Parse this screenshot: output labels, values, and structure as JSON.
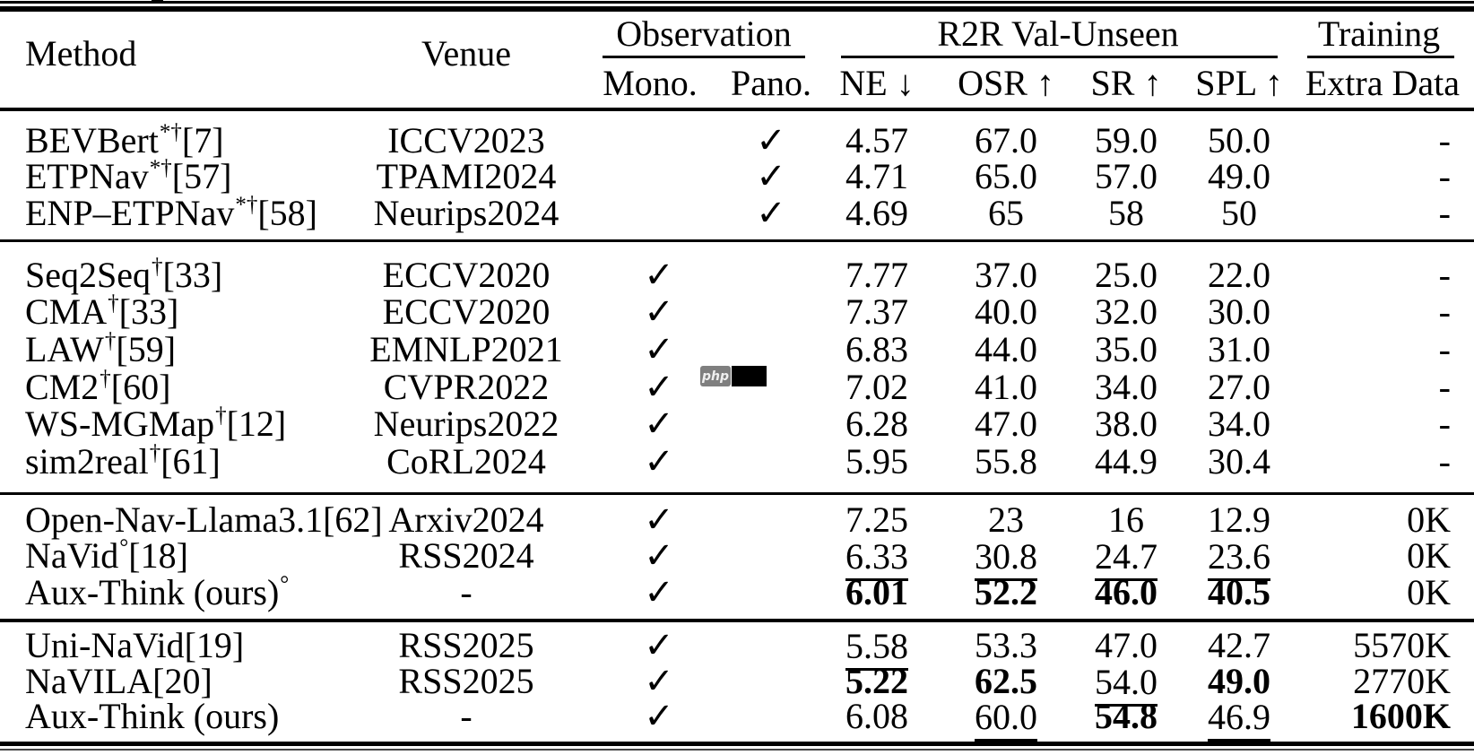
{
  "table": {
    "header": {
      "method": "Method",
      "venue": "Venue",
      "observation": "Observation",
      "r2r": "R2R Val-Unseen",
      "training": "Training",
      "mono": "Mono.",
      "pano": "Pano.",
      "ne": "NE ↓",
      "osr": "OSR ↑",
      "sr": "SR ↑",
      "spl": "SPL ↑",
      "extra": "Extra Data"
    },
    "groups": [
      {
        "rows": [
          {
            "method": {
              "base": "BEVBert",
              "sup": "*†",
              "ref": "[7]"
            },
            "venue": "ICCV2023",
            "mono": false,
            "pano": true,
            "ne": {
              "t": "4.57"
            },
            "osr": {
              "t": "67.0"
            },
            "sr": {
              "t": "59.0"
            },
            "spl": {
              "t": "50.0"
            },
            "extra": {
              "t": "-"
            }
          },
          {
            "method": {
              "base": "ETPNav",
              "sup": "*†",
              "ref": "[57]"
            },
            "venue": "TPAMI2024",
            "mono": false,
            "pano": true,
            "ne": {
              "t": "4.71"
            },
            "osr": {
              "t": "65.0"
            },
            "sr": {
              "t": "57.0"
            },
            "spl": {
              "t": "49.0"
            },
            "extra": {
              "t": "-"
            }
          },
          {
            "method": {
              "base": "ENP–ETPNav",
              "sup": "*†",
              "ref": "[58]"
            },
            "venue": "Neurips2024",
            "mono": false,
            "pano": true,
            "ne": {
              "t": "4.69"
            },
            "osr": {
              "t": "65"
            },
            "sr": {
              "t": "58"
            },
            "spl": {
              "t": "50"
            },
            "extra": {
              "t": "-"
            }
          }
        ]
      },
      {
        "rows": [
          {
            "method": {
              "base": "Seq2Seq",
              "sup": "†",
              "ref": "[33]"
            },
            "venue": "ECCV2020",
            "mono": true,
            "pano": false,
            "ne": {
              "t": "7.77"
            },
            "osr": {
              "t": "37.0"
            },
            "sr": {
              "t": "25.0"
            },
            "spl": {
              "t": "22.0"
            },
            "extra": {
              "t": "-"
            }
          },
          {
            "method": {
              "base": "CMA",
              "sup": "†",
              "ref": "[33]"
            },
            "venue": "ECCV2020",
            "mono": true,
            "pano": false,
            "ne": {
              "t": "7.37"
            },
            "osr": {
              "t": "40.0"
            },
            "sr": {
              "t": "32.0"
            },
            "spl": {
              "t": "30.0"
            },
            "extra": {
              "t": "-"
            }
          },
          {
            "method": {
              "base": "LAW",
              "sup": "†",
              "ref": "[59]"
            },
            "venue": "EMNLP2021",
            "mono": true,
            "pano": false,
            "ne": {
              "t": "6.83"
            },
            "osr": {
              "t": "44.0"
            },
            "sr": {
              "t": "35.0"
            },
            "spl": {
              "t": "31.0"
            },
            "extra": {
              "t": "-"
            }
          },
          {
            "method": {
              "base": "CM2",
              "sup": "†",
              "ref": "[60]"
            },
            "venue": "CVPR2022",
            "mono": true,
            "pano": false,
            "ne": {
              "t": "7.02"
            },
            "osr": {
              "t": "41.0"
            },
            "sr": {
              "t": "34.0"
            },
            "spl": {
              "t": "27.0"
            },
            "extra": {
              "t": "-"
            }
          },
          {
            "method": {
              "base": "WS-MGMap",
              "sup": "†",
              "ref": "[12]"
            },
            "venue": "Neurips2022",
            "mono": true,
            "pano": false,
            "ne": {
              "t": "6.28"
            },
            "osr": {
              "t": "47.0"
            },
            "sr": {
              "t": "38.0"
            },
            "spl": {
              "t": "34.0"
            },
            "extra": {
              "t": "-"
            }
          },
          {
            "method": {
              "base": "sim2real",
              "sup": "†",
              "ref": "[61]"
            },
            "venue": "CoRL2024",
            "mono": true,
            "pano": false,
            "ne": {
              "t": "5.95"
            },
            "osr": {
              "t": "55.8"
            },
            "sr": {
              "t": "44.9"
            },
            "spl": {
              "t": "30.4"
            },
            "extra": {
              "t": "-"
            }
          }
        ]
      },
      {
        "rows": [
          {
            "method": {
              "base": "Open-Nav-Llama3.1",
              "sup": "",
              "ref": "[62]"
            },
            "venue": "Arxiv2024",
            "mono": true,
            "pano": false,
            "ne": {
              "t": "7.25"
            },
            "osr": {
              "t": "23"
            },
            "sr": {
              "t": "16"
            },
            "spl": {
              "t": "12.9"
            },
            "extra": {
              "t": "0K"
            }
          },
          {
            "method": {
              "base": "NaVid",
              "sup": "°",
              "ref": "[18]"
            },
            "venue": "RSS2024",
            "mono": true,
            "pano": false,
            "ne": {
              "t": "6.33",
              "u": true
            },
            "osr": {
              "t": "30.8",
              "u": true
            },
            "sr": {
              "t": "24.7",
              "u": true
            },
            "spl": {
              "t": "23.6",
              "u": true
            },
            "extra": {
              "t": "0K"
            }
          },
          {
            "method": {
              "base": "Aux-Think (ours)",
              "sup": "°",
              "ref": ""
            },
            "venue": "-",
            "mono": true,
            "pano": false,
            "ne": {
              "t": "6.01",
              "b": true
            },
            "osr": {
              "t": "52.2",
              "b": true
            },
            "sr": {
              "t": "46.0",
              "b": true
            },
            "spl": {
              "t": "40.5",
              "b": true
            },
            "extra": {
              "t": "0K"
            }
          }
        ]
      },
      {
        "rows": [
          {
            "method": {
              "base": "Uni-NaVid",
              "sup": "",
              "ref": "[19]"
            },
            "venue": "RSS2025",
            "mono": true,
            "pano": false,
            "ne": {
              "t": "5.58",
              "u": true
            },
            "osr": {
              "t": "53.3"
            },
            "sr": {
              "t": "47.0"
            },
            "spl": {
              "t": "42.7"
            },
            "extra": {
              "t": "5570K"
            }
          },
          {
            "method": {
              "base": "NaVILA",
              "sup": "",
              "ref": "[20]"
            },
            "venue": "RSS2025",
            "mono": true,
            "pano": false,
            "ne": {
              "t": "5.22",
              "b": true
            },
            "osr": {
              "t": "62.5",
              "b": true
            },
            "sr": {
              "t": "54.0",
              "u": true
            },
            "spl": {
              "t": "49.0",
              "b": true
            },
            "extra": {
              "t": "2770K"
            }
          },
          {
            "method": {
              "base": "Aux-Think (ours)",
              "sup": "",
              "ref": ""
            },
            "venue": "-",
            "mono": true,
            "pano": false,
            "ne": {
              "t": "6.08"
            },
            "osr": {
              "t": "60.0",
              "u": true
            },
            "sr": {
              "t": "54.8",
              "b": true
            },
            "spl": {
              "t": "46.9",
              "u": true
            },
            "extra": {
              "t": "1600K",
              "b": true
            }
          }
        ]
      }
    ]
  },
  "glyphs": {
    "check": "✓"
  },
  "artifact": {
    "php_label": "php"
  },
  "colors": {
    "text": "#000000",
    "background": "#ffffff",
    "rule": "#000000",
    "php_badge_grey": "#7f7f7f",
    "php_badge_black": "#000000"
  }
}
